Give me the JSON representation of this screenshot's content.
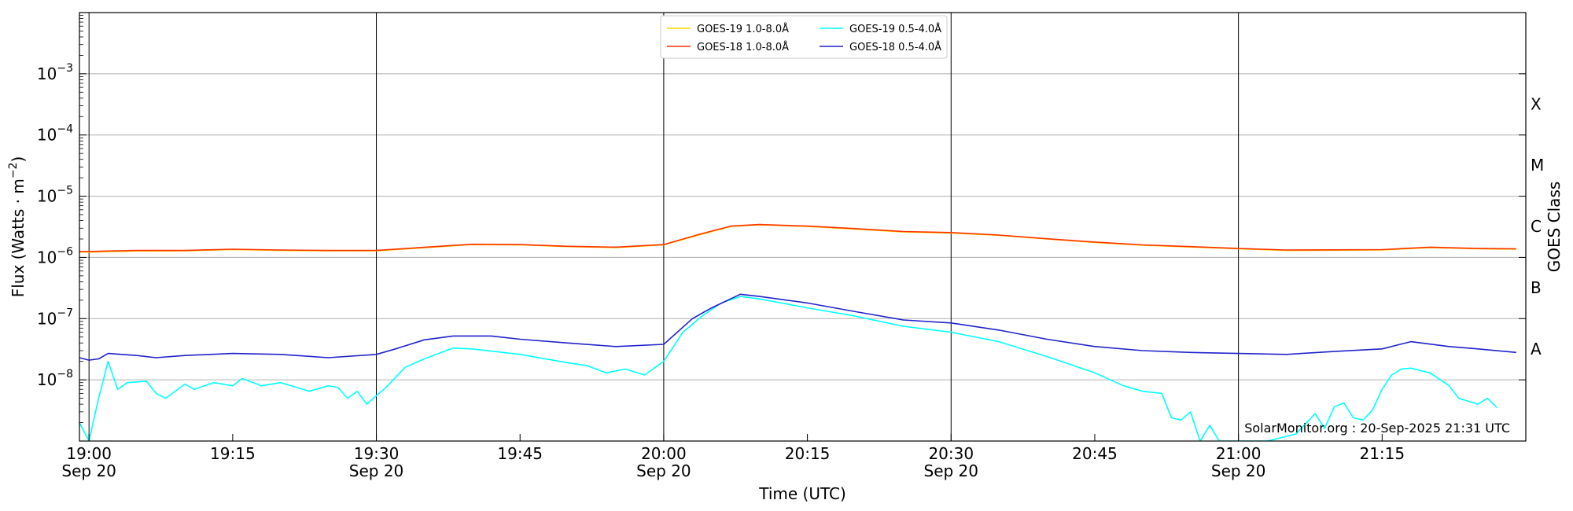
{
  "chart_data": {
    "type": "line",
    "xlabel": "Time (UTC)",
    "ylabel": "Flux (Watts · m",
    "ylabel_sup": "−2",
    "ylabel_close": ")",
    "right_label": "GOES Class",
    "credit": "SolarMonitor.org : 20-Sep-2025 21:31 UTC",
    "xlim": [
      "2025-09-20 18:59",
      "2025-09-20 21:30"
    ],
    "ylim": [
      1e-09,
      0.01
    ],
    "yscale": "log",
    "grid": "horizontal at decades",
    "legend_position": "top-center",
    "x_ticks": [
      {
        "time": "2025-09-20 19:00",
        "line1": "19:00",
        "line2": "Sep 20"
      },
      {
        "time": "2025-09-20 19:15",
        "line1": "19:15",
        "line2": ""
      },
      {
        "time": "2025-09-20 19:30",
        "line1": "19:30",
        "line2": "Sep 20"
      },
      {
        "time": "2025-09-20 19:45",
        "line1": "19:45",
        "line2": ""
      },
      {
        "time": "2025-09-20 20:00",
        "line1": "20:00",
        "line2": "Sep 20"
      },
      {
        "time": "2025-09-20 20:15",
        "line1": "20:15",
        "line2": ""
      },
      {
        "time": "2025-09-20 20:30",
        "line1": "20:30",
        "line2": "Sep 20"
      },
      {
        "time": "2025-09-20 20:45",
        "line1": "20:45",
        "line2": ""
      },
      {
        "time": "2025-09-20 21:00",
        "line1": "21:00",
        "line2": "Sep 20"
      },
      {
        "time": "2025-09-20 21:15",
        "line1": "21:15",
        "line2": ""
      }
    ],
    "vlines": [
      "2025-09-20 19:00",
      "2025-09-20 19:30",
      "2025-09-20 20:00",
      "2025-09-20 20:30",
      "2025-09-20 21:00"
    ],
    "y_ticks": [
      {
        "value": 1e-08,
        "exp": "−8"
      },
      {
        "value": 1e-07,
        "exp": "−7"
      },
      {
        "value": 1e-06,
        "exp": "−6"
      },
      {
        "value": 1e-05,
        "exp": "−5"
      },
      {
        "value": 0.0001,
        "exp": "−4"
      },
      {
        "value": 0.001,
        "exp": "−3"
      }
    ],
    "goes_classes": [
      {
        "label": "A",
        "value": 3.2e-08
      },
      {
        "label": "B",
        "value": 3.2e-07
      },
      {
        "label": "C",
        "value": 3.2e-06
      },
      {
        "label": "M",
        "value": 3.2e-05
      },
      {
        "label": "X",
        "value": 0.00032
      }
    ],
    "series": [
      {
        "name": "GOES-19 1.0-8.0Å",
        "color": "#ffd700",
        "points": [
          [
            "2025-09-20 18:59",
            1.22e-06
          ],
          [
            "2025-09-20 19:00",
            1.22e-06
          ],
          [
            "2025-09-20 19:05",
            1.27e-06
          ],
          [
            "2025-09-20 19:10",
            1.28e-06
          ],
          [
            "2025-09-20 19:15",
            1.34e-06
          ],
          [
            "2025-09-20 19:20",
            1.3e-06
          ],
          [
            "2025-09-20 19:25",
            1.28e-06
          ],
          [
            "2025-09-20 19:30",
            1.28e-06
          ],
          [
            "2025-09-20 19:35",
            1.44e-06
          ],
          [
            "2025-09-20 19:40",
            1.62e-06
          ],
          [
            "2025-09-20 19:45",
            1.6e-06
          ],
          [
            "2025-09-20 19:50",
            1.5e-06
          ],
          [
            "2025-09-20 19:55",
            1.45e-06
          ],
          [
            "2025-09-20 20:00",
            1.6e-06
          ],
          [
            "2025-09-20 20:04",
            2.4e-06
          ],
          [
            "2025-09-20 20:07",
            3.2e-06
          ],
          [
            "2025-09-20 20:10",
            3.4e-06
          ],
          [
            "2025-09-20 20:15",
            3.2e-06
          ],
          [
            "2025-09-20 20:20",
            2.9e-06
          ],
          [
            "2025-09-20 20:25",
            2.6e-06
          ],
          [
            "2025-09-20 20:30",
            2.5e-06
          ],
          [
            "2025-09-20 20:35",
            2.3e-06
          ],
          [
            "2025-09-20 20:40",
            2e-06
          ],
          [
            "2025-09-20 20:45",
            1.75e-06
          ],
          [
            "2025-09-20 20:50",
            1.58e-06
          ],
          [
            "2025-09-20 20:55",
            1.48e-06
          ],
          [
            "2025-09-20 21:00",
            1.38e-06
          ],
          [
            "2025-09-20 21:05",
            1.3e-06
          ],
          [
            "2025-09-20 21:10",
            1.31e-06
          ],
          [
            "2025-09-20 21:15",
            1.32e-06
          ],
          [
            "2025-09-20 21:20",
            1.45e-06
          ],
          [
            "2025-09-20 21:25",
            1.38e-06
          ],
          [
            "2025-09-20 21:29",
            1.36e-06
          ]
        ]
      },
      {
        "name": "GOES-18 1.0-8.0Å",
        "color": "#ff3300",
        "points": [
          [
            "2025-09-20 18:59",
            1.25e-06
          ],
          [
            "2025-09-20 19:00",
            1.25e-06
          ],
          [
            "2025-09-20 19:05",
            1.3e-06
          ],
          [
            "2025-09-20 19:10",
            1.3e-06
          ],
          [
            "2025-09-20 19:15",
            1.36e-06
          ],
          [
            "2025-09-20 19:20",
            1.32e-06
          ],
          [
            "2025-09-20 19:25",
            1.3e-06
          ],
          [
            "2025-09-20 19:30",
            1.3e-06
          ],
          [
            "2025-09-20 19:35",
            1.46e-06
          ],
          [
            "2025-09-20 19:40",
            1.64e-06
          ],
          [
            "2025-09-20 19:45",
            1.62e-06
          ],
          [
            "2025-09-20 19:50",
            1.52e-06
          ],
          [
            "2025-09-20 19:55",
            1.47e-06
          ],
          [
            "2025-09-20 20:00",
            1.62e-06
          ],
          [
            "2025-09-20 20:04",
            2.45e-06
          ],
          [
            "2025-09-20 20:07",
            3.25e-06
          ],
          [
            "2025-09-20 20:10",
            3.45e-06
          ],
          [
            "2025-09-20 20:15",
            3.25e-06
          ],
          [
            "2025-09-20 20:20",
            2.95e-06
          ],
          [
            "2025-09-20 20:25",
            2.65e-06
          ],
          [
            "2025-09-20 20:30",
            2.55e-06
          ],
          [
            "2025-09-20 20:35",
            2.32e-06
          ],
          [
            "2025-09-20 20:40",
            2.02e-06
          ],
          [
            "2025-09-20 20:45",
            1.78e-06
          ],
          [
            "2025-09-20 20:50",
            1.6e-06
          ],
          [
            "2025-09-20 20:55",
            1.5e-06
          ],
          [
            "2025-09-20 21:00",
            1.4e-06
          ],
          [
            "2025-09-20 21:05",
            1.32e-06
          ],
          [
            "2025-09-20 21:10",
            1.33e-06
          ],
          [
            "2025-09-20 21:15",
            1.34e-06
          ],
          [
            "2025-09-20 21:20",
            1.47e-06
          ],
          [
            "2025-09-20 21:25",
            1.4e-06
          ],
          [
            "2025-09-20 21:29",
            1.38e-06
          ]
        ]
      },
      {
        "name": "GOES-19 0.5-4.0Å",
        "color": "#00ffff",
        "points": [
          [
            "2025-09-20 18:59",
            2e-09
          ],
          [
            "2025-09-20 19:00",
            1e-09
          ],
          [
            "2025-09-20 19:01",
            5e-09
          ],
          [
            "2025-09-20 19:02",
            2e-08
          ],
          [
            "2025-09-20 19:03",
            7e-09
          ],
          [
            "2025-09-20 19:04",
            9e-09
          ],
          [
            "2025-09-20 19:06",
            9.5e-09
          ],
          [
            "2025-09-20 19:07",
            6e-09
          ],
          [
            "2025-09-20 19:08",
            5e-09
          ],
          [
            "2025-09-20 19:10",
            8.5e-09
          ],
          [
            "2025-09-20 19:11",
            7e-09
          ],
          [
            "2025-09-20 19:13",
            9e-09
          ],
          [
            "2025-09-20 19:15",
            8e-09
          ],
          [
            "2025-09-20 19:16",
            1.05e-08
          ],
          [
            "2025-09-20 19:18",
            8e-09
          ],
          [
            "2025-09-20 19:20",
            9e-09
          ],
          [
            "2025-09-20 19:23",
            6.5e-09
          ],
          [
            "2025-09-20 19:25",
            8e-09
          ],
          [
            "2025-09-20 19:26",
            7.5e-09
          ],
          [
            "2025-09-20 19:27",
            5e-09
          ],
          [
            "2025-09-20 19:28",
            6.5e-09
          ],
          [
            "2025-09-20 19:29",
            4e-09
          ],
          [
            "2025-09-20 19:30",
            5.5e-09
          ],
          [
            "2025-09-20 19:31",
            7.5e-09
          ],
          [
            "2025-09-20 19:33",
            1.6e-08
          ],
          [
            "2025-09-20 19:35",
            2.2e-08
          ],
          [
            "2025-09-20 19:38",
            3.3e-08
          ],
          [
            "2025-09-20 19:40",
            3.2e-08
          ],
          [
            "2025-09-20 19:45",
            2.6e-08
          ],
          [
            "2025-09-20 19:50",
            1.9e-08
          ],
          [
            "2025-09-20 19:52",
            1.7e-08
          ],
          [
            "2025-09-20 19:54",
            1.3e-08
          ],
          [
            "2025-09-20 19:56",
            1.5e-08
          ],
          [
            "2025-09-20 19:58",
            1.2e-08
          ],
          [
            "2025-09-20 20:00",
            2e-08
          ],
          [
            "2025-09-20 20:02",
            6e-08
          ],
          [
            "2025-09-20 20:04",
            1.1e-07
          ],
          [
            "2025-09-20 20:06",
            1.8e-07
          ],
          [
            "2025-09-20 20:08",
            2.3e-07
          ],
          [
            "2025-09-20 20:10",
            2.1e-07
          ],
          [
            "2025-09-20 20:15",
            1.5e-07
          ],
          [
            "2025-09-20 20:20",
            1.1e-07
          ],
          [
            "2025-09-20 20:25",
            7.5e-08
          ],
          [
            "2025-09-20 20:30",
            6e-08
          ],
          [
            "2025-09-20 20:35",
            4.2e-08
          ],
          [
            "2025-09-20 20:40",
            2.4e-08
          ],
          [
            "2025-09-20 20:45",
            1.3e-08
          ],
          [
            "2025-09-20 20:48",
            8e-09
          ],
          [
            "2025-09-20 20:50",
            6.5e-09
          ],
          [
            "2025-09-20 20:52",
            6e-09
          ],
          [
            "2025-09-20 20:53",
            2.4e-09
          ],
          [
            "2025-09-20 20:54",
            2.2e-09
          ],
          [
            "2025-09-20 20:55",
            3e-09
          ],
          [
            "2025-09-20 20:56",
            1e-09
          ],
          [
            "2025-09-20 20:57",
            1.8e-09
          ],
          [
            "2025-09-20 20:58",
            1e-09
          ],
          [
            "2025-09-20 21:03",
            1e-09
          ],
          [
            "2025-09-20 21:06",
            1.3e-09
          ],
          [
            "2025-09-20 21:08",
            2.8e-09
          ],
          [
            "2025-09-20 21:09",
            1.6e-09
          ],
          [
            "2025-09-20 21:10",
            3.6e-09
          ],
          [
            "2025-09-20 21:11",
            4.2e-09
          ],
          [
            "2025-09-20 21:12",
            2.4e-09
          ],
          [
            "2025-09-20 21:13",
            2.2e-09
          ],
          [
            "2025-09-20 21:14",
            3.2e-09
          ],
          [
            "2025-09-20 21:15",
            7e-09
          ],
          [
            "2025-09-20 21:16",
            1.2e-08
          ],
          [
            "2025-09-20 21:17",
            1.5e-08
          ],
          [
            "2025-09-20 21:18",
            1.55e-08
          ],
          [
            "2025-09-20 21:20",
            1.3e-08
          ],
          [
            "2025-09-20 21:22",
            8e-09
          ],
          [
            "2025-09-20 21:23",
            5e-09
          ],
          [
            "2025-09-20 21:25",
            4e-09
          ],
          [
            "2025-09-20 21:26",
            5e-09
          ],
          [
            "2025-09-20 21:27",
            3.5e-09
          ]
        ]
      },
      {
        "name": "GOES-18 0.5-4.0Å",
        "color": "#2222cc",
        "points": [
          [
            "2025-09-20 18:59",
            2.3e-08
          ],
          [
            "2025-09-20 19:00",
            2.1e-08
          ],
          [
            "2025-09-20 19:01",
            2.2e-08
          ],
          [
            "2025-09-20 19:02",
            2.7e-08
          ],
          [
            "2025-09-20 19:05",
            2.5e-08
          ],
          [
            "2025-09-20 19:07",
            2.3e-08
          ],
          [
            "2025-09-20 19:10",
            2.5e-08
          ],
          [
            "2025-09-20 19:15",
            2.7e-08
          ],
          [
            "2025-09-20 19:20",
            2.6e-08
          ],
          [
            "2025-09-20 19:25",
            2.3e-08
          ],
          [
            "2025-09-20 19:30",
            2.6e-08
          ],
          [
            "2025-09-20 19:32",
            3.2e-08
          ],
          [
            "2025-09-20 19:35",
            4.5e-08
          ],
          [
            "2025-09-20 19:38",
            5.2e-08
          ],
          [
            "2025-09-20 19:42",
            5.2e-08
          ],
          [
            "2025-09-20 19:45",
            4.6e-08
          ],
          [
            "2025-09-20 19:50",
            4e-08
          ],
          [
            "2025-09-20 19:55",
            3.5e-08
          ],
          [
            "2025-09-20 20:00",
            3.8e-08
          ],
          [
            "2025-09-20 20:03",
            1e-07
          ],
          [
            "2025-09-20 20:05",
            1.5e-07
          ],
          [
            "2025-09-20 20:08",
            2.5e-07
          ],
          [
            "2025-09-20 20:10",
            2.3e-07
          ],
          [
            "2025-09-20 20:15",
            1.8e-07
          ],
          [
            "2025-09-20 20:20",
            1.3e-07
          ],
          [
            "2025-09-20 20:25",
            9.5e-08
          ],
          [
            "2025-09-20 20:30",
            8.5e-08
          ],
          [
            "2025-09-20 20:35",
            6.5e-08
          ],
          [
            "2025-09-20 20:40",
            4.6e-08
          ],
          [
            "2025-09-20 20:45",
            3.5e-08
          ],
          [
            "2025-09-20 20:50",
            3e-08
          ],
          [
            "2025-09-20 20:55",
            2.8e-08
          ],
          [
            "2025-09-20 21:00",
            2.7e-08
          ],
          [
            "2025-09-20 21:05",
            2.6e-08
          ],
          [
            "2025-09-20 21:10",
            2.9e-08
          ],
          [
            "2025-09-20 21:15",
            3.2e-08
          ],
          [
            "2025-09-20 21:18",
            4.2e-08
          ],
          [
            "2025-09-20 21:22",
            3.5e-08
          ],
          [
            "2025-09-20 21:25",
            3.2e-08
          ],
          [
            "2025-09-20 21:29",
            2.8e-08
          ]
        ]
      }
    ]
  }
}
